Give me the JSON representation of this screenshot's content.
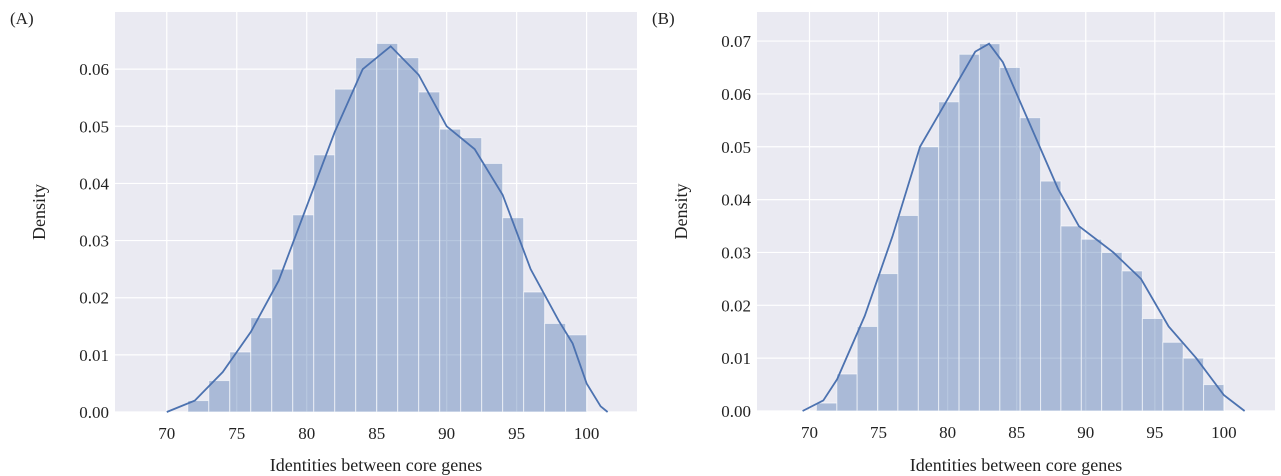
{
  "chart_data": [
    {
      "type": "histogram",
      "panel_label": "(A)",
      "xlabel": "Identities between core genes",
      "ylabel": "Density",
      "bins": [
        71.5,
        73,
        74.5,
        76,
        77.5,
        79,
        80.5,
        82,
        83.5,
        85,
        86.5,
        88,
        89.5,
        91,
        92.5,
        94,
        95.5,
        97,
        98.5,
        100
      ],
      "values": [
        0.002,
        0.0055,
        0.0105,
        0.0165,
        0.025,
        0.0345,
        0.045,
        0.0565,
        0.062,
        0.0645,
        0.062,
        0.056,
        0.0495,
        0.048,
        0.0435,
        0.034,
        0.021,
        0.0155,
        0.0135
      ],
      "color": "#4c72b0",
      "kde": {
        "x": [
          70,
          72,
          74,
          76,
          78,
          80,
          82,
          84,
          86,
          88,
          90,
          92,
          94,
          96,
          98,
          99,
          100,
          101,
          101.5
        ],
        "values": [
          0,
          0.002,
          0.007,
          0.014,
          0.023,
          0.036,
          0.049,
          0.06,
          0.064,
          0.059,
          0.05,
          0.046,
          0.038,
          0.025,
          0.016,
          0.012,
          0.005,
          0.001,
          0
        ]
      },
      "xlim": [
        66.3,
        103.6
      ],
      "ylim": [
        0,
        0.07
      ],
      "xticks": [
        70,
        75,
        80,
        85,
        90,
        95,
        100
      ],
      "yticks": [
        {
          "value": 0,
          "label": "0.00"
        },
        {
          "value": 0.01,
          "label": "0.01"
        },
        {
          "value": 0.02,
          "label": "0.02"
        },
        {
          "value": 0.03,
          "label": "0.03"
        },
        {
          "value": 0.04,
          "label": "0.04"
        },
        {
          "value": 0.05,
          "label": "0.05"
        },
        {
          "value": 0.06,
          "label": "0.06"
        }
      ],
      "grid": true
    },
    {
      "type": "histogram",
      "panel_label": "(B)",
      "xlabel": "Identities between core genes",
      "ylabel": "Density",
      "bins": [
        70.5,
        71.98,
        73.45,
        74.93,
        76.4,
        77.88,
        79.35,
        80.83,
        82.3,
        83.78,
        85.25,
        86.73,
        88.2,
        89.68,
        91.15,
        92.63,
        94.1,
        95.58,
        97.05,
        98.53,
        100
      ],
      "values": [
        0.0015,
        0.007,
        0.016,
        0.026,
        0.037,
        0.05,
        0.0585,
        0.0675,
        0.0695,
        0.065,
        0.0555,
        0.0435,
        0.035,
        0.0325,
        0.03,
        0.0265,
        0.0175,
        0.013,
        0.01,
        0.005
      ],
      "color": "#4c72b0",
      "kde": {
        "x": [
          69.5,
          71,
          72,
          74,
          76,
          78,
          80,
          82,
          83,
          84,
          86,
          88,
          89.5,
          91,
          92,
          94,
          96,
          98,
          100,
          101.5
        ],
        "values": [
          0,
          0.002,
          0.006,
          0.018,
          0.033,
          0.05,
          0.059,
          0.068,
          0.0695,
          0.066,
          0.054,
          0.042,
          0.035,
          0.032,
          0.03,
          0.025,
          0.016,
          0.01,
          0.003,
          0
        ]
      },
      "xlim": [
        66.2,
        103.7
      ],
      "ylim": [
        0,
        0.0755
      ],
      "xticks": [
        70,
        75,
        80,
        85,
        90,
        95,
        100
      ],
      "yticks": [
        {
          "value": 0,
          "label": "0.00"
        },
        {
          "value": 0.01,
          "label": "0.01"
        },
        {
          "value": 0.02,
          "label": "0.02"
        },
        {
          "value": 0.03,
          "label": "0.03"
        },
        {
          "value": 0.04,
          "label": "0.04"
        },
        {
          "value": 0.05,
          "label": "0.05"
        },
        {
          "value": 0.06,
          "label": "0.06"
        },
        {
          "value": 0.07,
          "label": "0.07"
        }
      ],
      "grid": true
    }
  ]
}
